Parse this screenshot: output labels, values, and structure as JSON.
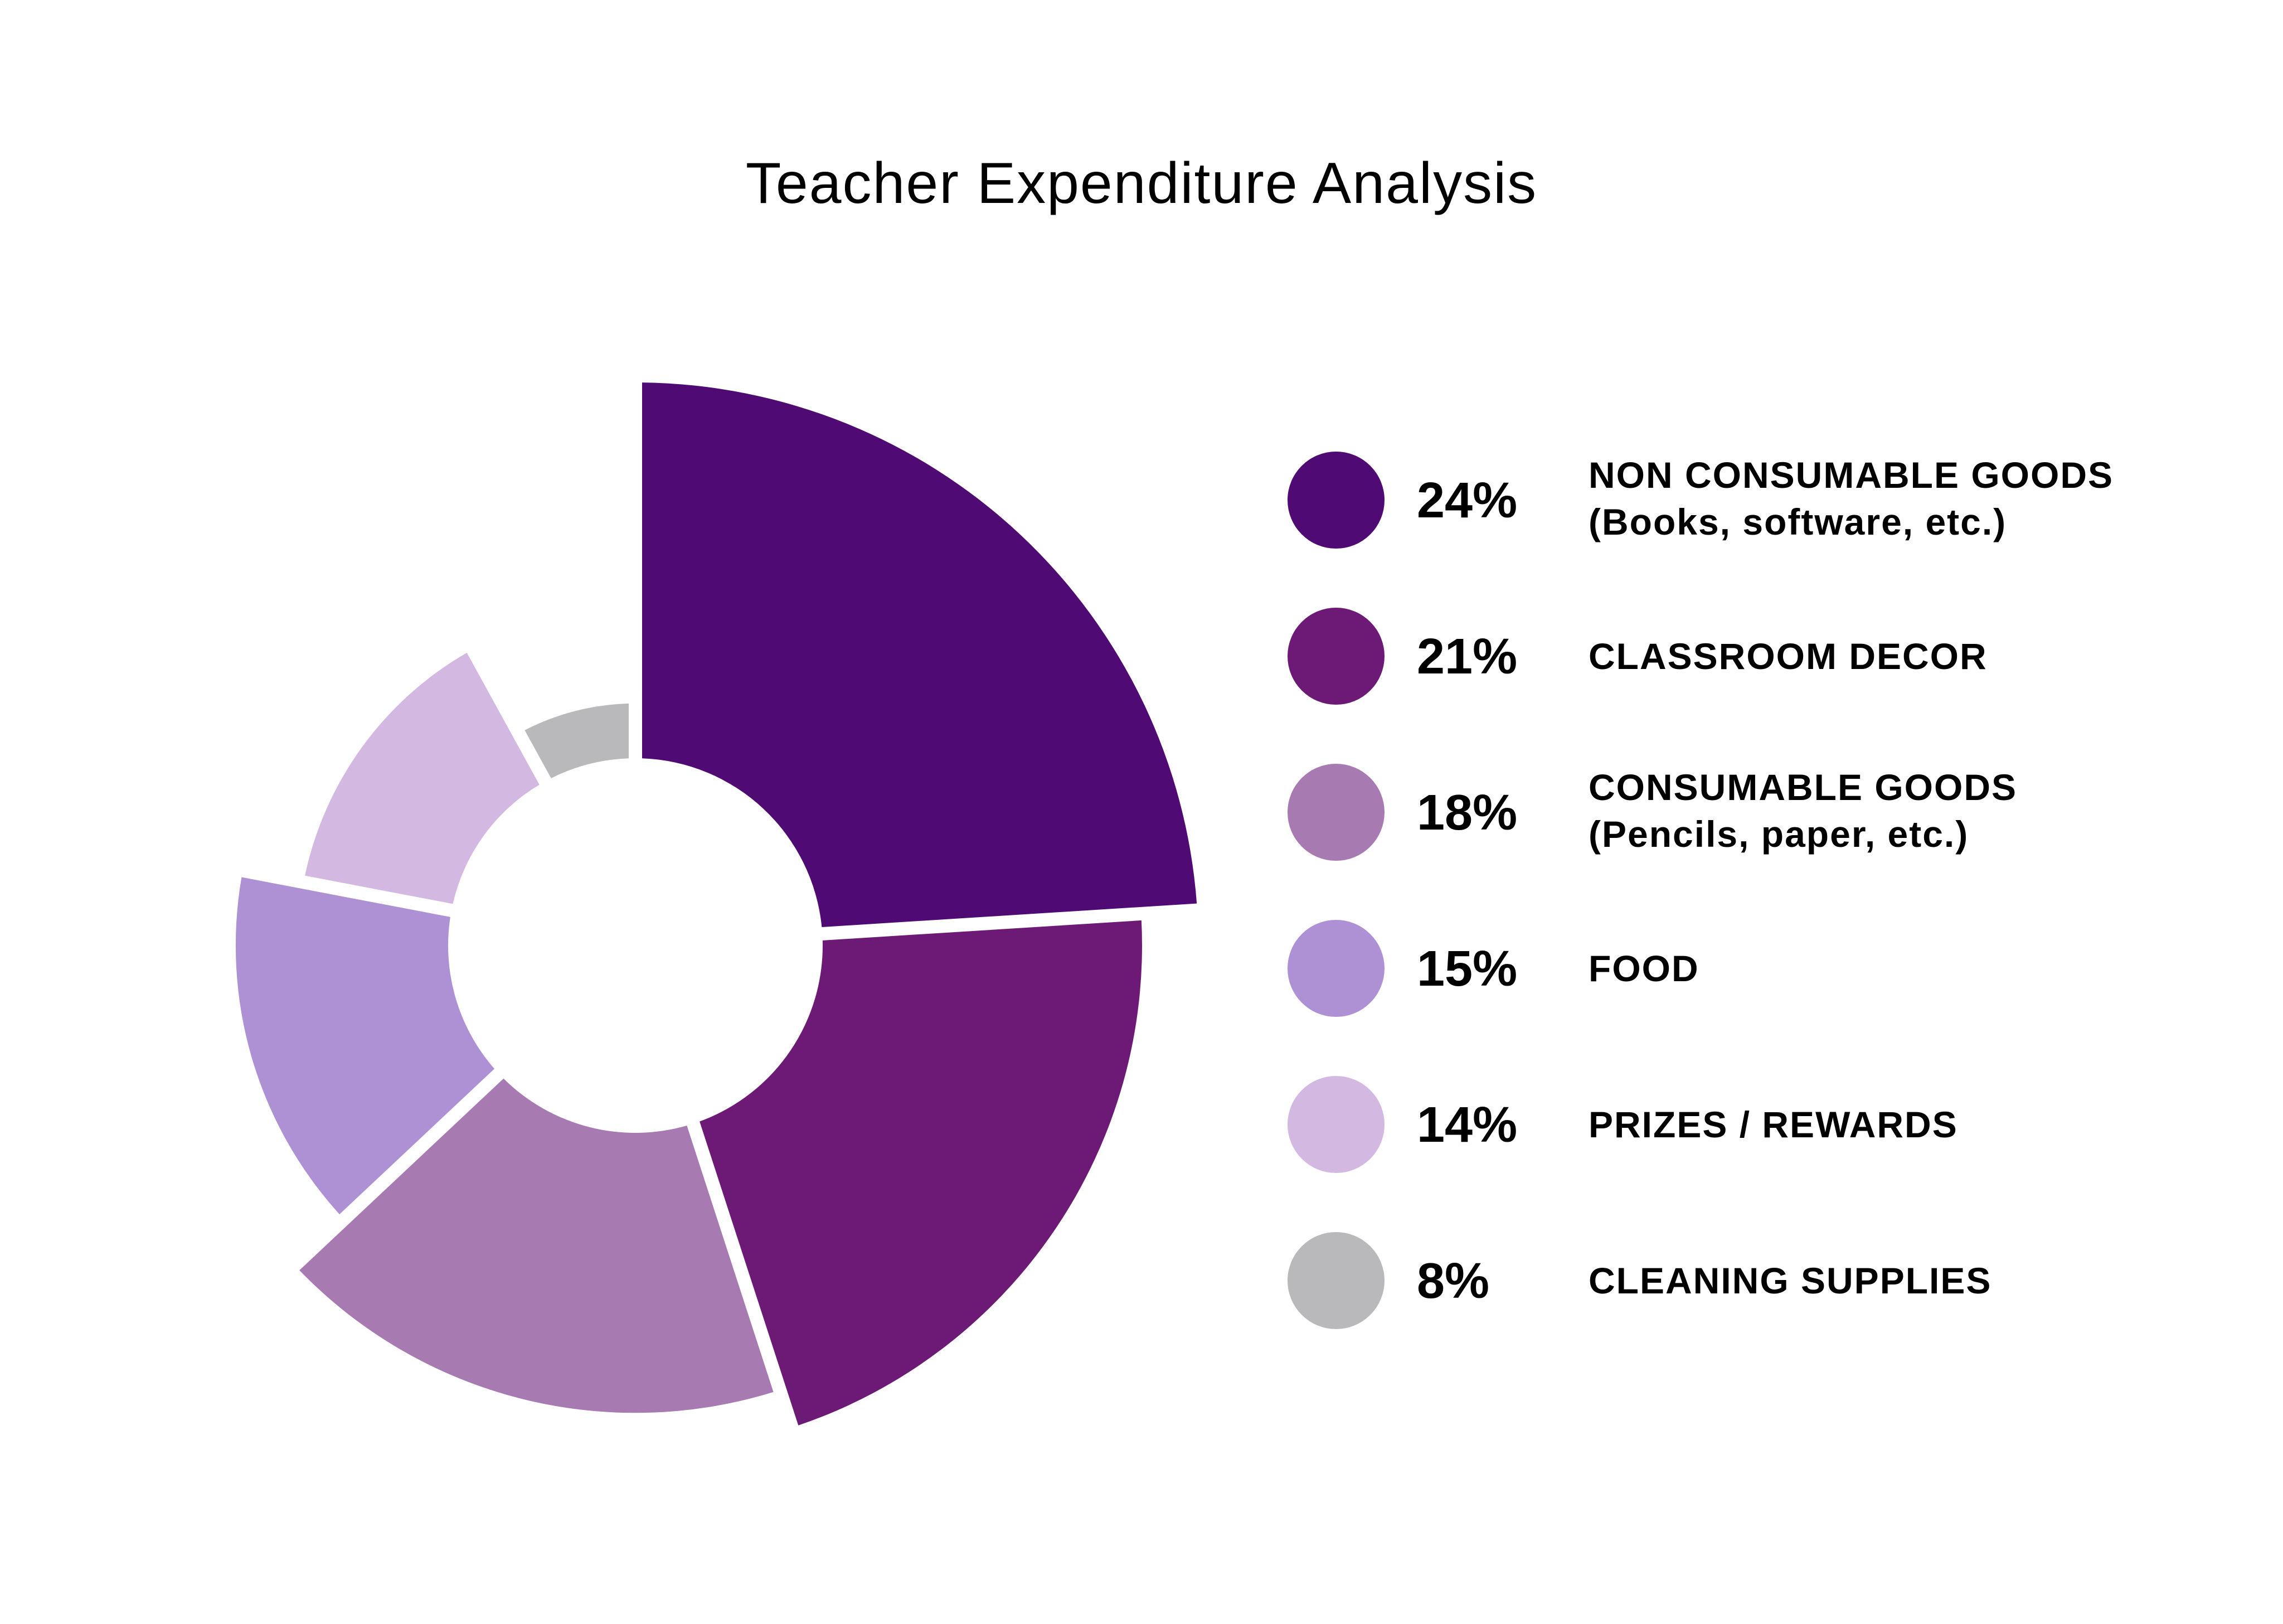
{
  "chart_data": {
    "type": "pie",
    "title": "Teacher Expenditure Analysis",
    "variant": "donut",
    "slices": [
      {
        "label": "NON CONSUMABLE GOODS",
        "sublabel": "(Books, software, etc.)",
        "value": 24,
        "pct_label": "24%",
        "color": "#4f0a73",
        "outer": 1.0
      },
      {
        "label": "CLASSROOM DECOR",
        "sublabel": "",
        "value": 21,
        "pct_label": "21%",
        "color": "#6d1a76",
        "outer": 0.9
      },
      {
        "label": "CONSUMABLE GOODS",
        "sublabel": "(Pencils, paper, etc.)",
        "value": 18,
        "pct_label": "18%",
        "color": "#a87ab2",
        "outer": 0.83
      },
      {
        "label": "FOOD",
        "sublabel": "",
        "value": 15,
        "pct_label": "15%",
        "color": "#ae91d5",
        "outer": 0.71
      },
      {
        "label": "PRIZES / REWARDS",
        "sublabel": "",
        "value": 14,
        "pct_label": "14%",
        "color": "#d3b8e2",
        "outer": 0.6
      },
      {
        "label": "CLEANING SUPPLIES",
        "sublabel": "",
        "value": 8,
        "pct_label": "8%",
        "color": "#b9b8ba",
        "outer": 0.43
      }
    ],
    "legend": "right"
  }
}
